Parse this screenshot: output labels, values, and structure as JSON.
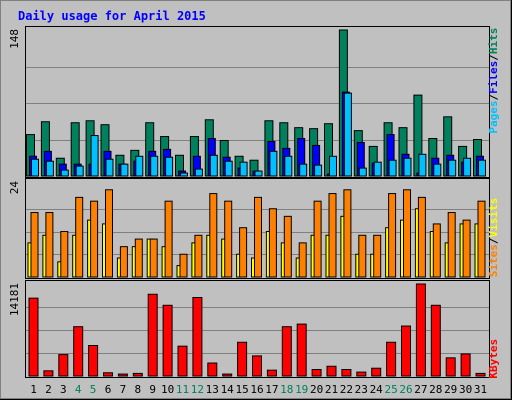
{
  "title": "Daily usage for April 2015",
  "colors": {
    "background": "#c0c0c0",
    "title": "#0000ff",
    "hits": "#00805c",
    "files": "#0000ff",
    "pages": "#00c0ff",
    "visits": "#ffff00",
    "sites": "#ff8000",
    "kbytes": "#ff0000",
    "weekend_label": "#00805c"
  },
  "chart_data": [
    {
      "type": "bar",
      "panel": "hits-files-pages",
      "ymax_label": "148",
      "ylim": [
        0,
        148
      ],
      "legend": [
        "Pages",
        "/",
        "Files",
        "/",
        "Hits"
      ],
      "categories": [
        "1",
        "2",
        "3",
        "4",
        "5",
        "6",
        "7",
        "8",
        "9",
        "10",
        "11",
        "12",
        "13",
        "14",
        "15",
        "16",
        "17",
        "18",
        "19",
        "20",
        "21",
        "22",
        "23",
        "24",
        "25",
        "26",
        "27",
        "28",
        "29",
        "30",
        "31"
      ],
      "series": [
        {
          "name": "Hits",
          "values": [
            42,
            55,
            18,
            54,
            56,
            52,
            21,
            26,
            54,
            40,
            21,
            40,
            57,
            36,
            20,
            16,
            56,
            54,
            49,
            48,
            53,
            148,
            46,
            30,
            54,
            49,
            82,
            38,
            60,
            30,
            37
          ]
        },
        {
          "name": "Files",
          "values": [
            20,
            25,
            12,
            12,
            12,
            25,
            12,
            15,
            25,
            27,
            5,
            20,
            38,
            19,
            8,
            5,
            35,
            28,
            38,
            31,
            2,
            85,
            34,
            13,
            42,
            22,
            3,
            18,
            21,
            14,
            20
          ]
        },
        {
          "name": "Pages",
          "values": [
            17,
            15,
            6,
            10,
            41,
            17,
            12,
            20,
            20,
            19,
            3,
            7,
            21,
            15,
            14,
            5,
            25,
            20,
            12,
            11,
            20,
            84,
            8,
            14,
            16,
            18,
            22,
            12,
            16,
            18,
            16
          ]
        }
      ]
    },
    {
      "type": "bar",
      "panel": "visits-sites",
      "ymax_label": "24",
      "ylim": [
        0,
        24
      ],
      "legend": [
        "Sites",
        "/",
        "Visits"
      ],
      "categories": [
        "1",
        "2",
        "3",
        "4",
        "5",
        "6",
        "7",
        "8",
        "9",
        "10",
        "11",
        "12",
        "13",
        "14",
        "15",
        "16",
        "17",
        "18",
        "19",
        "20",
        "21",
        "22",
        "23",
        "24",
        "25",
        "26",
        "27",
        "28",
        "29",
        "30",
        "31"
      ],
      "series": [
        {
          "name": "Visits",
          "values": [
            9,
            11,
            4,
            11,
            15,
            14,
            5,
            8,
            10,
            8,
            3,
            9,
            11,
            10,
            6,
            5,
            12,
            9,
            5,
            11,
            11,
            16,
            6,
            6,
            13,
            15,
            18,
            12,
            9,
            14,
            14
          ]
        },
        {
          "name": "Sites",
          "values": [
            17,
            17,
            12,
            21,
            20,
            23,
            8,
            10,
            10,
            20,
            6,
            11,
            22,
            20,
            13,
            21,
            18,
            16,
            9,
            20,
            22,
            23,
            11,
            11,
            22,
            23,
            21,
            14,
            17,
            15,
            20
          ]
        }
      ]
    },
    {
      "type": "bar",
      "panel": "kbytes",
      "ymax_label": "14181",
      "ylim": [
        0,
        14181
      ],
      "legend": [
        "KBytes"
      ],
      "categories": [
        "1",
        "2",
        "3",
        "4",
        "5",
        "6",
        "7",
        "8",
        "9",
        "10",
        "11",
        "12",
        "13",
        "14",
        "15",
        "16",
        "17",
        "18",
        "19",
        "20",
        "21",
        "22",
        "23",
        "24",
        "25",
        "26",
        "27",
        "28",
        "29",
        "30",
        "31"
      ],
      "series": [
        {
          "name": "KBytes",
          "values": [
            12000,
            800,
            3300,
            7600,
            4700,
            500,
            300,
            400,
            12600,
            10900,
            4600,
            12100,
            2000,
            300,
            5200,
            3100,
            900,
            7600,
            8000,
            1000,
            1500,
            1000,
            600,
            1200,
            5200,
            7700,
            14181,
            10900,
            2800,
            3400,
            400
          ]
        }
      ]
    }
  ],
  "x_axis": {
    "labels": [
      "1",
      "2",
      "3",
      "4",
      "5",
      "6",
      "7",
      "8",
      "9",
      "10",
      "11",
      "12",
      "13",
      "14",
      "15",
      "16",
      "17",
      "18",
      "19",
      "20",
      "21",
      "22",
      "23",
      "24",
      "25",
      "26",
      "27",
      "28",
      "29",
      "30",
      "31"
    ],
    "weekend_days": [
      "4",
      "5",
      "11",
      "12",
      "18",
      "19",
      "25",
      "26"
    ]
  }
}
